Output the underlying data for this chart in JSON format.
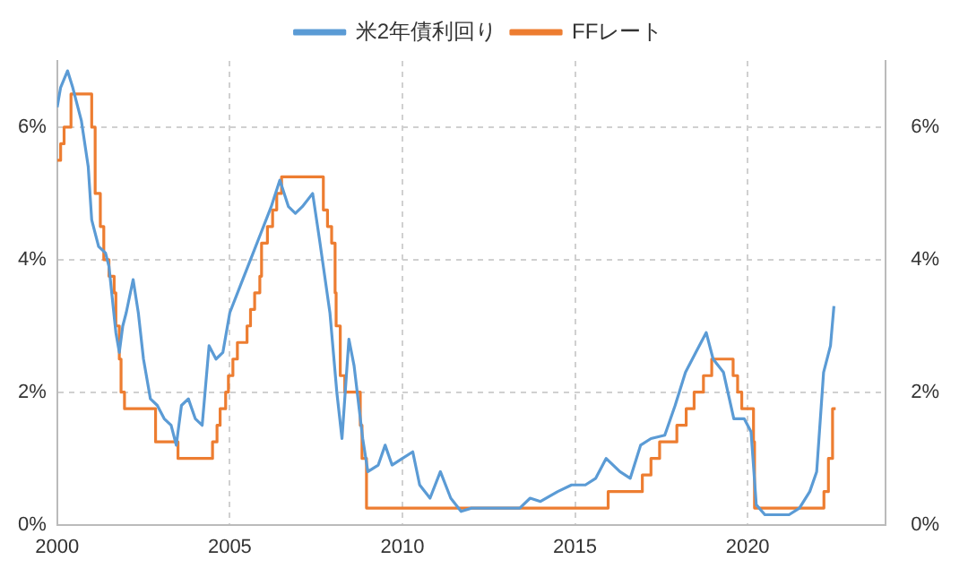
{
  "chart_data": {
    "type": "line",
    "legend": "top",
    "grid": true,
    "marker": "none",
    "line_style": "solid",
    "xlim": [
      2000,
      2024
    ],
    "xticks": [
      2000,
      2005,
      2010,
      2015,
      2020
    ],
    "ylim": [
      0,
      7
    ],
    "yticks": [
      {
        "value": 0,
        "label": "0%"
      },
      {
        "value": 2,
        "label": "2%"
      },
      {
        "value": 4,
        "label": "4%"
      },
      {
        "value": 6,
        "label": "6%"
      }
    ],
    "y2lim": [
      0,
      7
    ],
    "y2ticks": [
      {
        "value": 0,
        "label": "0%"
      },
      {
        "value": 2,
        "label": "2%"
      },
      {
        "value": 4,
        "label": "4%"
      },
      {
        "value": 6,
        "label": "6%"
      }
    ],
    "series": [
      {
        "name": "米2年債利回り",
        "type": "line",
        "color": "#5b9bd5",
        "x": [
          2000.0,
          2000.1,
          2000.3,
          2000.45,
          2000.7,
          2000.9,
          2001.0,
          2001.2,
          2001.4,
          2001.5,
          2001.7,
          2001.8,
          2001.9,
          2002.0,
          2002.2,
          2002.35,
          2002.5,
          2002.7,
          2002.9,
          2003.1,
          2003.3,
          2003.45,
          2003.6,
          2003.8,
          2004.0,
          2004.2,
          2004.4,
          2004.6,
          2004.8,
          2005.0,
          2005.3,
          2005.6,
          2005.9,
          2006.2,
          2006.45,
          2006.7,
          2006.9,
          2007.1,
          2007.4,
          2007.6,
          2007.9,
          2008.1,
          2008.25,
          2008.45,
          2008.6,
          2008.85,
          2009.0,
          2009.3,
          2009.5,
          2009.7,
          2010.0,
          2010.3,
          2010.5,
          2010.8,
          2011.1,
          2011.4,
          2011.7,
          2012.0,
          2012.5,
          2013.0,
          2013.4,
          2013.7,
          2014.0,
          2014.5,
          2014.9,
          2015.3,
          2015.6,
          2015.9,
          2016.3,
          2016.6,
          2016.9,
          2017.2,
          2017.6,
          2017.9,
          2018.2,
          2018.5,
          2018.8,
          2019.0,
          2019.3,
          2019.6,
          2019.9,
          2020.1,
          2020.25,
          2020.5,
          2020.9,
          2021.2,
          2021.5,
          2021.8,
          2022.0,
          2022.2,
          2022.4,
          2022.5
        ],
        "values": [
          6.3,
          6.6,
          6.85,
          6.6,
          6.1,
          5.4,
          4.6,
          4.2,
          4.1,
          3.9,
          2.9,
          2.6,
          3.0,
          3.2,
          3.7,
          3.2,
          2.5,
          1.9,
          1.8,
          1.6,
          1.5,
          1.2,
          1.8,
          1.9,
          1.6,
          1.5,
          2.7,
          2.5,
          2.6,
          3.2,
          3.6,
          4.0,
          4.4,
          4.8,
          5.2,
          4.8,
          4.7,
          4.8,
          5.0,
          4.3,
          3.2,
          2.0,
          1.3,
          2.8,
          2.4,
          1.3,
          0.8,
          0.9,
          1.2,
          0.9,
          1.0,
          1.1,
          0.6,
          0.4,
          0.8,
          0.4,
          0.2,
          0.25,
          0.25,
          0.25,
          0.25,
          0.4,
          0.35,
          0.5,
          0.6,
          0.6,
          0.7,
          1.0,
          0.8,
          0.7,
          1.2,
          1.3,
          1.35,
          1.8,
          2.3,
          2.6,
          2.9,
          2.5,
          2.3,
          1.6,
          1.6,
          1.4,
          0.3,
          0.15,
          0.15,
          0.15,
          0.25,
          0.5,
          0.8,
          2.3,
          2.7,
          3.3
        ]
      },
      {
        "name": "FFレート",
        "type": "step",
        "color": "#ed7d31",
        "x": [
          2000.0,
          2000.1,
          2000.2,
          2000.4,
          2001.0,
          2001.1,
          2001.25,
          2001.35,
          2001.5,
          2001.65,
          2001.7,
          2001.8,
          2001.85,
          2001.95,
          2002.85,
          2003.5,
          2004.5,
          2004.63,
          2004.72,
          2004.88,
          2004.96,
          2005.09,
          2005.22,
          2005.5,
          2005.6,
          2005.72,
          2005.87,
          2005.92,
          2006.09,
          2006.24,
          2006.36,
          2006.5,
          2007.71,
          2007.83,
          2007.95,
          2008.05,
          2008.08,
          2008.2,
          2008.33,
          2008.78,
          2008.83,
          2008.96,
          2015.96,
          2016.95,
          2017.2,
          2017.45,
          2017.95,
          2018.22,
          2018.45,
          2018.72,
          2018.96,
          2019.58,
          2019.71,
          2019.83,
          2020.17,
          2020.2,
          2022.21,
          2022.34,
          2022.46,
          2022.55
        ],
        "values": [
          5.5,
          5.75,
          6.0,
          6.5,
          6.0,
          5.0,
          4.5,
          4.0,
          3.75,
          3.5,
          3.0,
          2.5,
          2.0,
          1.75,
          1.25,
          1.0,
          1.25,
          1.5,
          1.75,
          2.0,
          2.25,
          2.5,
          2.75,
          3.0,
          3.25,
          3.5,
          3.75,
          4.25,
          4.5,
          4.75,
          5.0,
          5.25,
          4.75,
          4.5,
          4.25,
          3.5,
          3.0,
          2.25,
          2.0,
          1.5,
          1.0,
          0.25,
          0.5,
          0.75,
          1.0,
          1.25,
          1.5,
          1.75,
          2.0,
          2.25,
          2.5,
          2.25,
          2.0,
          1.75,
          1.25,
          0.25,
          0.5,
          1.0,
          1.75,
          1.75
        ]
      }
    ]
  }
}
